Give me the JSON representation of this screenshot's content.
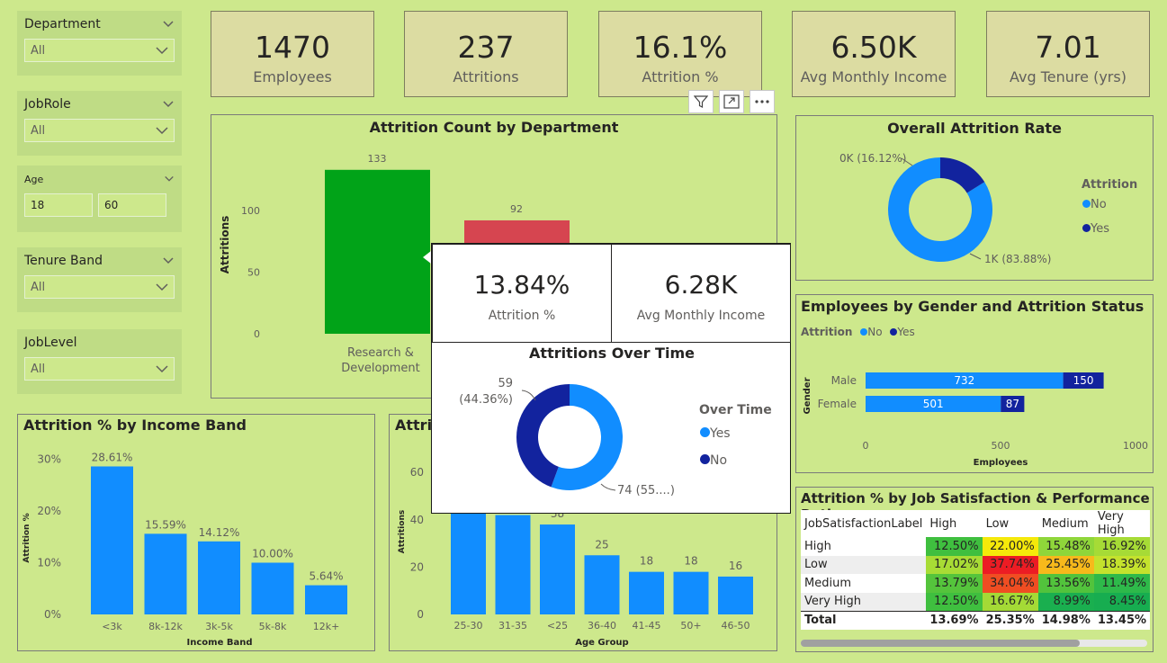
{
  "slicers": {
    "department": {
      "title": "Department",
      "value": "All"
    },
    "jobrole": {
      "title": "JobRole",
      "value": "All"
    },
    "age": {
      "title": "Age",
      "min": "18",
      "max": "60"
    },
    "tenure": {
      "title": "Tenure Band",
      "value": "All"
    },
    "joblevel": {
      "title": "JobLevel",
      "value": "All"
    }
  },
  "kpis": [
    {
      "value": "1470",
      "label": "Employees"
    },
    {
      "value": "237",
      "label": "Attritions"
    },
    {
      "value": "16.1%",
      "label": "Attrition %"
    },
    {
      "value": "6.50K",
      "label": "Avg Monthly Income"
    },
    {
      "value": "7.01",
      "label": "Avg Tenure (yrs)"
    }
  ],
  "dept_chart": {
    "title": "Attrition Count by Department",
    "ylabel": "Attritions",
    "ticks": [
      "100",
      "50",
      "0"
    ],
    "bars": [
      {
        "label1": "Research &",
        "label2": "Development",
        "value": 133,
        "value_label": "133",
        "color": "#01a318"
      },
      {
        "label1": "",
        "label2": "",
        "value": 92,
        "value_label": "92",
        "color": "#d64550"
      }
    ]
  },
  "overall": {
    "title": "Overall Attrition Rate",
    "legend_title": "Attrition",
    "legend": [
      {
        "name": "No",
        "color": "#118dff"
      },
      {
        "name": "Yes",
        "color": "#12239e"
      }
    ],
    "label_yes": "0K (16.12%)",
    "label_no": "1K (83.88%)",
    "yes_pct": 16.12
  },
  "gender": {
    "title": "Employees by Gender and Attrition Status",
    "legend_title": "Attrition",
    "legend": [
      {
        "name": "No",
        "color": "#118dff"
      },
      {
        "name": "Yes",
        "color": "#12239e"
      }
    ],
    "ylabel": "Gender",
    "xlabel": "Employees",
    "ticks": [
      "0",
      "500",
      "1000"
    ],
    "rows": [
      {
        "name": "Male",
        "no": 732,
        "yes": 150,
        "no_label": "732",
        "yes_label": "150"
      },
      {
        "name": "Female",
        "no": 501,
        "yes": 87,
        "no_label": "501",
        "yes_label": "87"
      }
    ]
  },
  "income_chart": {
    "title": "Attrition % by Income Band",
    "ylabel": "Attrition %",
    "xlabel": "Income Band",
    "ticks": [
      "30%",
      "20%",
      "10%",
      "0%"
    ],
    "bars": [
      {
        "cat": "<3k",
        "value": 28.61,
        "label": "28.61%"
      },
      {
        "cat": "8k-12k",
        "value": 15.59,
        "label": "15.59%"
      },
      {
        "cat": "3k-5k",
        "value": 14.12,
        "label": "14.12%"
      },
      {
        "cat": "5k-8k",
        "value": 10.0,
        "label": "10.00%"
      },
      {
        "cat": "12k+",
        "value": 5.64,
        "label": "5.64%"
      }
    ]
  },
  "age_chart": {
    "title_fragment": "Attrit",
    "ylabel": "Attritions",
    "xlabel": "Age Group",
    "ticks": [
      "60",
      "40",
      "20",
      "0"
    ],
    "bars": [
      {
        "cat": "25-30",
        "value": 44,
        "label": ""
      },
      {
        "cat": "31-35",
        "value": 42,
        "label": ""
      },
      {
        "cat": "<25",
        "value": 38,
        "label": "38"
      },
      {
        "cat": "36-40",
        "value": 25,
        "label": "25"
      },
      {
        "cat": "41-45",
        "value": 18,
        "label": "18"
      },
      {
        "cat": "50+",
        "value": 18,
        "label": "18"
      },
      {
        "cat": "46-50",
        "value": 16,
        "label": "16"
      }
    ]
  },
  "popup": {
    "card1": {
      "value": "13.84%",
      "label": "Attrition %"
    },
    "card2": {
      "value": "6.28K",
      "label": "Avg Monthly Income"
    },
    "title": "Attritions Over Time",
    "legend_title": "Over Time",
    "legend": [
      {
        "name": "Yes",
        "color": "#118dff"
      },
      {
        "name": "No",
        "color": "#12239e"
      }
    ],
    "label_no_1": "59",
    "label_no_2": "(44.36%)",
    "label_yes": "74 (55....)",
    "no_pct": 44.36
  },
  "heatmap": {
    "title": "Attrition % by Job Satisfaction & Performance Rating",
    "headers": [
      "JobSatisfactionLabel",
      "High",
      "Low",
      "Medium",
      "Very High"
    ],
    "rows": [
      {
        "name": "High",
        "cells": [
          {
            "v": "12.50%",
            "c": "#3fbf3f"
          },
          {
            "v": "22.00%",
            "c": "#f5e90a"
          },
          {
            "v": "15.48%",
            "c": "#8fd63a"
          },
          {
            "v": "16.92%",
            "c": "#a6db36"
          }
        ]
      },
      {
        "name": "Low",
        "cells": [
          {
            "v": "17.02%",
            "c": "#a8dc35"
          },
          {
            "v": "37.74%",
            "c": "#ec1c24"
          },
          {
            "v": "25.45%",
            "c": "#f7b91b"
          },
          {
            "v": "18.39%",
            "c": "#c4e22d"
          }
        ]
      },
      {
        "name": "Medium",
        "cells": [
          {
            "v": "13.79%",
            "c": "#55c43c"
          },
          {
            "v": "34.04%",
            "c": "#f04d22"
          },
          {
            "v": "13.56%",
            "c": "#52c33c"
          },
          {
            "v": "11.49%",
            "c": "#2eb94a"
          }
        ]
      },
      {
        "name": "Very High",
        "cells": [
          {
            "v": "12.50%",
            "c": "#3fbf3f"
          },
          {
            "v": "16.67%",
            "c": "#a4da36"
          },
          {
            "v": "8.99%",
            "c": "#1aaf4f"
          },
          {
            "v": "8.45%",
            "c": "#17ad50"
          }
        ]
      }
    ],
    "total": {
      "name": "Total",
      "cells": [
        "13.69%",
        "25.35%",
        "14.98%",
        "13.45%"
      ]
    }
  }
}
